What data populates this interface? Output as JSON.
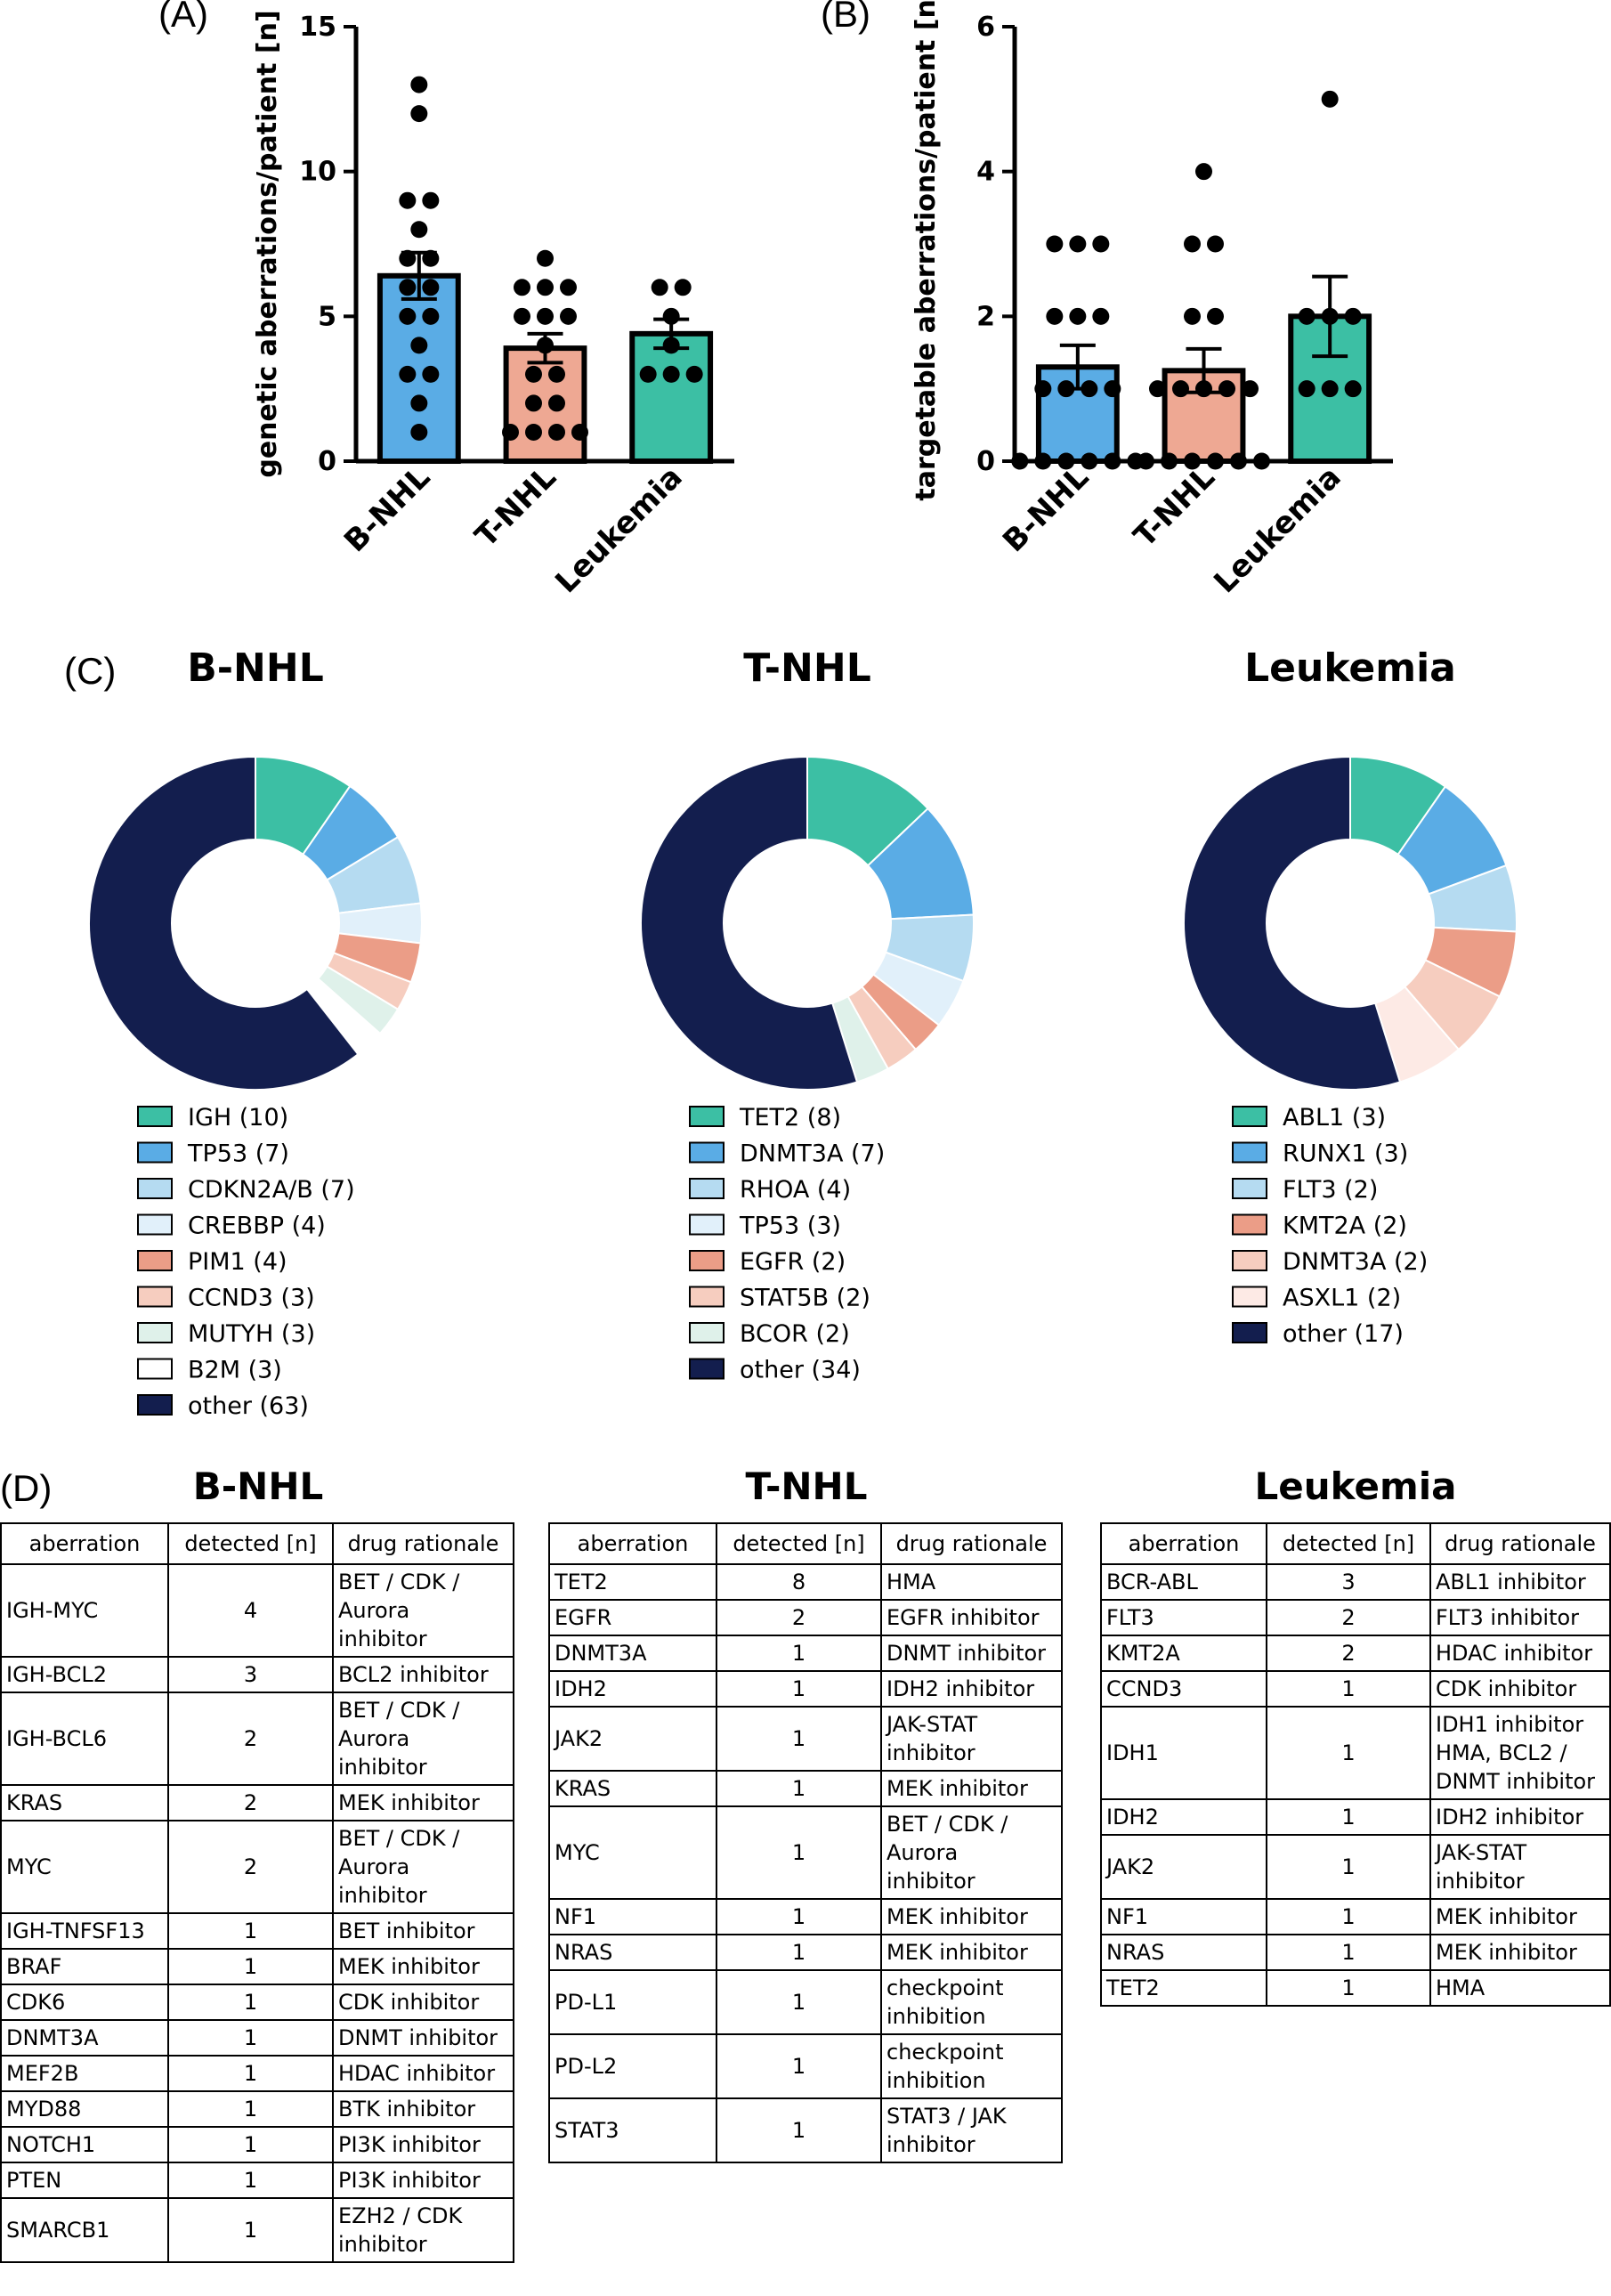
{
  "colors": {
    "bnhl_bar": "#5aace5",
    "tnhl_bar": "#eea893",
    "leuk_bar": "#3cbfa4",
    "ignore": "#000000"
  },
  "panel_labels": {
    "a": "(A)",
    "b": "(B)",
    "c": "(C)",
    "d": "(D)"
  },
  "chart_data": [
    {
      "type": "bar",
      "panel": "(A)",
      "ylabel": "genetic aberrations/patient [n]",
      "ylim": [
        0,
        15
      ],
      "yticks": [
        0,
        5,
        10,
        15
      ],
      "categories": [
        "B-NHL",
        "T-NHL",
        "Leukemia"
      ],
      "values": [
        6.4,
        3.9,
        4.4
      ],
      "sem": [
        0.8,
        0.5,
        0.5
      ],
      "colors": [
        "#5aace5",
        "#eea893",
        "#3cbfa4"
      ],
      "points": [
        [
          13,
          12,
          9,
          9,
          8,
          7,
          7,
          6,
          6,
          5,
          5,
          4,
          3,
          3,
          2,
          1
        ],
        [
          7,
          6,
          6,
          6,
          5,
          5,
          5,
          4,
          3,
          3,
          2,
          2,
          1,
          1,
          1,
          1
        ],
        [
          6,
          6,
          5,
          4,
          3,
          3,
          3
        ]
      ]
    },
    {
      "type": "bar",
      "panel": "(B)",
      "ylabel": "targetable aberrations/patient [n]",
      "ylim": [
        0,
        6
      ],
      "yticks": [
        0,
        2,
        4,
        6
      ],
      "categories": [
        "B-NHL",
        "T-NHL",
        "Leukemia"
      ],
      "values": [
        1.3,
        1.25,
        2.0
      ],
      "sem": [
        0.3,
        0.3,
        0.55
      ],
      "colors": [
        "#5aace5",
        "#eea893",
        "#3cbfa4"
      ],
      "points": [
        [
          3,
          3,
          3,
          2,
          2,
          2,
          1,
          1,
          1,
          1,
          0,
          0,
          0,
          0,
          0,
          0
        ],
        [
          4,
          3,
          3,
          2,
          2,
          1,
          1,
          1,
          1,
          1,
          0,
          0,
          0,
          0,
          0,
          0
        ],
        [
          5,
          2,
          2,
          2,
          1,
          1,
          1
        ]
      ]
    },
    {
      "type": "pie",
      "panel": "(C)",
      "title": "B-NHL",
      "slices": [
        {
          "label": "IGH (10)",
          "value": 10,
          "color": "#3cbfa4"
        },
        {
          "label": "TP53 (7)",
          "value": 7,
          "color": "#5aace5"
        },
        {
          "label": "CDKN2A/B (7)",
          "value": 7,
          "color": "#b5dbf1"
        },
        {
          "label": "CREBBP (4)",
          "value": 4,
          "color": "#e1f0fa"
        },
        {
          "label": "PIM1 (4)",
          "value": 4,
          "color": "#eb9d87"
        },
        {
          "label": "CCND3 (3)",
          "value": 3,
          "color": "#f6cdbf"
        },
        {
          "label": "MUTYH (3)",
          "value": 3,
          "color": "#dff1ea"
        },
        {
          "label": "B2M (3)",
          "value": 3,
          "color": "#ffffff"
        },
        {
          "label": "other (63)",
          "value": 63,
          "color": "#131e4e"
        }
      ]
    },
    {
      "type": "pie",
      "panel": "(C)",
      "title": "T-NHL",
      "slices": [
        {
          "label": "TET2 (8)",
          "value": 8,
          "color": "#3cbfa4"
        },
        {
          "label": "DNMT3A (7)",
          "value": 7,
          "color": "#5aace5"
        },
        {
          "label": "RHOA (4)",
          "value": 4,
          "color": "#b5dbf1"
        },
        {
          "label": "TP53 (3)",
          "value": 3,
          "color": "#e1f0fa"
        },
        {
          "label": "EGFR (2)",
          "value": 2,
          "color": "#eb9d87"
        },
        {
          "label": "STAT5B (2)",
          "value": 2,
          "color": "#f6cdbf"
        },
        {
          "label": "BCOR (2)",
          "value": 2,
          "color": "#dff1ea"
        },
        {
          "label": "other (34)",
          "value": 34,
          "color": "#131e4e"
        }
      ]
    },
    {
      "type": "pie",
      "panel": "(C)",
      "title": "Leukemia",
      "slices": [
        {
          "label": "ABL1 (3)",
          "value": 3,
          "color": "#3cbfa4"
        },
        {
          "label": "RUNX1 (3)",
          "value": 3,
          "color": "#5aace5"
        },
        {
          "label": "FLT3 (2)",
          "value": 2,
          "color": "#b5dbf1"
        },
        {
          "label": "KMT2A (2)",
          "value": 2,
          "color": "#eb9d87"
        },
        {
          "label": "DNMT3A (2)",
          "value": 2,
          "color": "#f6cdbf"
        },
        {
          "label": "ASXL1 (2)",
          "value": 2,
          "color": "#fdeae5"
        },
        {
          "label": "other (17)",
          "value": 17,
          "color": "#131e4e"
        }
      ]
    },
    {
      "type": "table",
      "panel": "(D)",
      "title": "B-NHL",
      "headers": [
        "aberration",
        "detected [n]",
        "drug rationale"
      ],
      "rows": [
        [
          "IGH-MYC",
          "4",
          [
            "BET / CDK /",
            "Aurora",
            "inhibitor"
          ]
        ],
        [
          "IGH-BCL2",
          "3",
          [
            "BCL2 inhibitor"
          ]
        ],
        [
          "IGH-BCL6",
          "2",
          [
            "BET / CDK /",
            "Aurora",
            "inhibitor"
          ]
        ],
        [
          "KRAS",
          "2",
          [
            "MEK inhibitor"
          ]
        ],
        [
          "MYC",
          "2",
          [
            "BET / CDK /",
            "Aurora",
            "inhibitor"
          ]
        ],
        [
          "IGH-TNFSF13",
          "1",
          [
            "BET inhibitor"
          ]
        ],
        [
          "BRAF",
          "1",
          [
            "MEK inhibitor"
          ]
        ],
        [
          "CDK6",
          "1",
          [
            "CDK inhibitor"
          ]
        ],
        [
          "DNMT3A",
          "1",
          [
            "DNMT inhibitor"
          ]
        ],
        [
          "MEF2B",
          "1",
          [
            "HDAC inhibitor"
          ]
        ],
        [
          "MYD88",
          "1",
          [
            "BTK inhibitor"
          ]
        ],
        [
          "NOTCH1",
          "1",
          [
            "PI3K inhibitor"
          ]
        ],
        [
          "PTEN",
          "1",
          [
            "PI3K inhibitor"
          ]
        ],
        [
          "SMARCB1",
          "1",
          [
            "EZH2 / CDK",
            "inhibitor"
          ]
        ]
      ]
    },
    {
      "type": "table",
      "panel": "(D)",
      "title": "T-NHL",
      "headers": [
        "aberration",
        "detected [n]",
        "drug rationale"
      ],
      "rows": [
        [
          "TET2",
          "8",
          [
            "HMA"
          ]
        ],
        [
          "EGFR",
          "2",
          [
            "EGFR inhibitor"
          ]
        ],
        [
          "DNMT3A",
          "1",
          [
            "DNMT inhibitor"
          ]
        ],
        [
          "IDH2",
          "1",
          [
            "IDH2 inhibitor"
          ]
        ],
        [
          "JAK2",
          "1",
          [
            "JAK-STAT",
            "inhibitor"
          ]
        ],
        [
          "KRAS",
          "1",
          [
            "MEK inhibitor"
          ]
        ],
        [
          "MYC",
          "1",
          [
            "BET / CDK /",
            "Aurora",
            "inhibitor"
          ]
        ],
        [
          "NF1",
          "1",
          [
            "MEK inhibitor"
          ]
        ],
        [
          "NRAS",
          "1",
          [
            "MEK inhibitor"
          ]
        ],
        [
          "PD-L1",
          "1",
          [
            "checkpoint",
            "inhibition"
          ]
        ],
        [
          "PD-L2",
          "1",
          [
            "checkpoint",
            "inhibition"
          ]
        ],
        [
          "STAT3",
          "1",
          [
            "STAT3 / JAK",
            "inhibitor"
          ]
        ]
      ]
    },
    {
      "type": "table",
      "panel": "(D)",
      "title": "Leukemia",
      "headers": [
        "aberration",
        "detected [n]",
        "drug rationale"
      ],
      "rows": [
        [
          "BCR-ABL",
          "3",
          [
            "ABL1 inhibitor"
          ]
        ],
        [
          "FLT3",
          "2",
          [
            "FLT3 inhibitor"
          ]
        ],
        [
          "KMT2A",
          "2",
          [
            "HDAC inhibitor"
          ]
        ],
        [
          "CCND3",
          "1",
          [
            "CDK inhibitor"
          ]
        ],
        [
          "IDH1",
          "1",
          [
            "IDH1 inhibitor",
            "HMA, BCL2 /",
            "DNMT inhibitor"
          ]
        ],
        [
          "IDH2",
          "1",
          [
            "IDH2 inhibitor"
          ]
        ],
        [
          "JAK2",
          "1",
          [
            "JAK-STAT",
            "inhibitor"
          ]
        ],
        [
          "NF1",
          "1",
          [
            "MEK inhibitor"
          ]
        ],
        [
          "NRAS",
          "1",
          [
            "MEK inhibitor"
          ]
        ],
        [
          "TET2",
          "1",
          [
            "HMA"
          ]
        ]
      ]
    }
  ]
}
